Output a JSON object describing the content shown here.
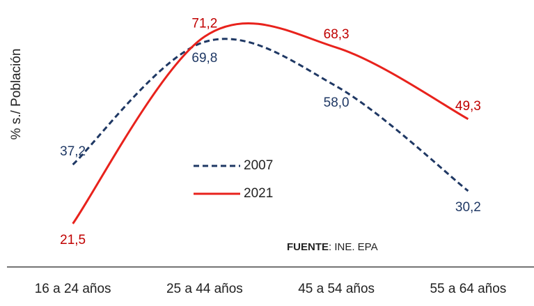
{
  "chart_data": {
    "type": "line",
    "y_label": "% s./ Población",
    "source_label": "FUENTE",
    "source_text": ": INE. EPA",
    "categories": [
      "16 a 24 años",
      "25 a 44 años",
      "45 a 54 años",
      "55 a 64 años"
    ],
    "series": [
      {
        "name": "2007",
        "color": "#1f3864",
        "dash": true,
        "values": [
          37.2,
          69.8,
          58.0,
          30.2
        ],
        "value_labels": [
          "37,2",
          "69,8",
          "58,0",
          "30,2"
        ]
      },
      {
        "name": "2021",
        "color": "#e8221c",
        "label_color": "#c00000",
        "dash": false,
        "values": [
          21.5,
          71.2,
          68.3,
          49.3
        ],
        "value_labels": [
          "21,5",
          "71,2",
          "68,3",
          "49,3"
        ]
      }
    ],
    "ylim": [
      10,
      80
    ]
  }
}
